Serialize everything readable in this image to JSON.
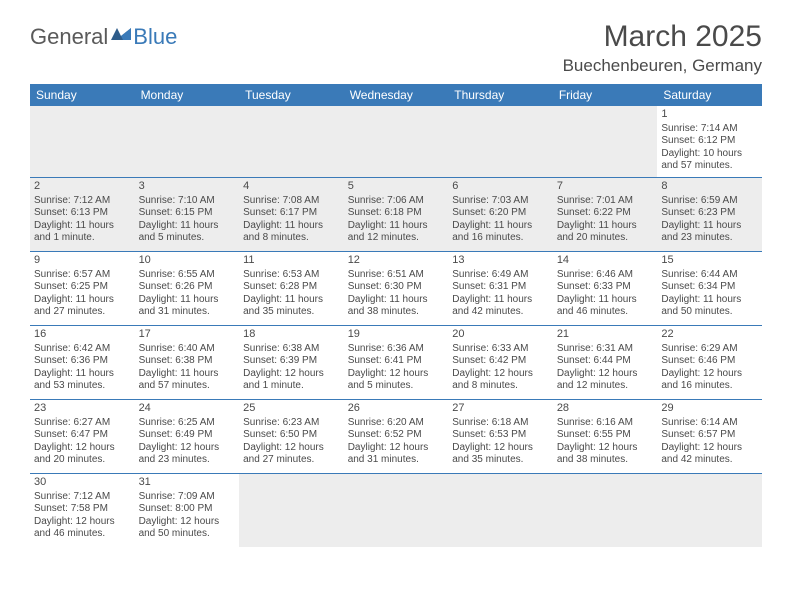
{
  "logo": {
    "general": "General",
    "blue": "Blue"
  },
  "title": "March 2025",
  "location": "Buechenbeuren, Germany",
  "colors": {
    "headerBg": "#3a7ab8",
    "headerText": "#ffffff",
    "border": "#3a7ab8",
    "text": "#4a4a4a",
    "emptyBg": "#ededed"
  },
  "weekdays": [
    "Sunday",
    "Monday",
    "Tuesday",
    "Wednesday",
    "Thursday",
    "Friday",
    "Saturday"
  ],
  "weeks": [
    [
      null,
      null,
      null,
      null,
      null,
      null,
      {
        "n": "1",
        "sr": "Sunrise: 7:14 AM",
        "ss": "Sunset: 6:12 PM",
        "dl": "Daylight: 10 hours and 57 minutes."
      }
    ],
    [
      {
        "n": "2",
        "sr": "Sunrise: 7:12 AM",
        "ss": "Sunset: 6:13 PM",
        "dl": "Daylight: 11 hours and 1 minute."
      },
      {
        "n": "3",
        "sr": "Sunrise: 7:10 AM",
        "ss": "Sunset: 6:15 PM",
        "dl": "Daylight: 11 hours and 5 minutes."
      },
      {
        "n": "4",
        "sr": "Sunrise: 7:08 AM",
        "ss": "Sunset: 6:17 PM",
        "dl": "Daylight: 11 hours and 8 minutes."
      },
      {
        "n": "5",
        "sr": "Sunrise: 7:06 AM",
        "ss": "Sunset: 6:18 PM",
        "dl": "Daylight: 11 hours and 12 minutes."
      },
      {
        "n": "6",
        "sr": "Sunrise: 7:03 AM",
        "ss": "Sunset: 6:20 PM",
        "dl": "Daylight: 11 hours and 16 minutes."
      },
      {
        "n": "7",
        "sr": "Sunrise: 7:01 AM",
        "ss": "Sunset: 6:22 PM",
        "dl": "Daylight: 11 hours and 20 minutes."
      },
      {
        "n": "8",
        "sr": "Sunrise: 6:59 AM",
        "ss": "Sunset: 6:23 PM",
        "dl": "Daylight: 11 hours and 23 minutes."
      }
    ],
    [
      {
        "n": "9",
        "sr": "Sunrise: 6:57 AM",
        "ss": "Sunset: 6:25 PM",
        "dl": "Daylight: 11 hours and 27 minutes."
      },
      {
        "n": "10",
        "sr": "Sunrise: 6:55 AM",
        "ss": "Sunset: 6:26 PM",
        "dl": "Daylight: 11 hours and 31 minutes."
      },
      {
        "n": "11",
        "sr": "Sunrise: 6:53 AM",
        "ss": "Sunset: 6:28 PM",
        "dl": "Daylight: 11 hours and 35 minutes."
      },
      {
        "n": "12",
        "sr": "Sunrise: 6:51 AM",
        "ss": "Sunset: 6:30 PM",
        "dl": "Daylight: 11 hours and 38 minutes."
      },
      {
        "n": "13",
        "sr": "Sunrise: 6:49 AM",
        "ss": "Sunset: 6:31 PM",
        "dl": "Daylight: 11 hours and 42 minutes."
      },
      {
        "n": "14",
        "sr": "Sunrise: 6:46 AM",
        "ss": "Sunset: 6:33 PM",
        "dl": "Daylight: 11 hours and 46 minutes."
      },
      {
        "n": "15",
        "sr": "Sunrise: 6:44 AM",
        "ss": "Sunset: 6:34 PM",
        "dl": "Daylight: 11 hours and 50 minutes."
      }
    ],
    [
      {
        "n": "16",
        "sr": "Sunrise: 6:42 AM",
        "ss": "Sunset: 6:36 PM",
        "dl": "Daylight: 11 hours and 53 minutes."
      },
      {
        "n": "17",
        "sr": "Sunrise: 6:40 AM",
        "ss": "Sunset: 6:38 PM",
        "dl": "Daylight: 11 hours and 57 minutes."
      },
      {
        "n": "18",
        "sr": "Sunrise: 6:38 AM",
        "ss": "Sunset: 6:39 PM",
        "dl": "Daylight: 12 hours and 1 minute."
      },
      {
        "n": "19",
        "sr": "Sunrise: 6:36 AM",
        "ss": "Sunset: 6:41 PM",
        "dl": "Daylight: 12 hours and 5 minutes."
      },
      {
        "n": "20",
        "sr": "Sunrise: 6:33 AM",
        "ss": "Sunset: 6:42 PM",
        "dl": "Daylight: 12 hours and 8 minutes."
      },
      {
        "n": "21",
        "sr": "Sunrise: 6:31 AM",
        "ss": "Sunset: 6:44 PM",
        "dl": "Daylight: 12 hours and 12 minutes."
      },
      {
        "n": "22",
        "sr": "Sunrise: 6:29 AM",
        "ss": "Sunset: 6:46 PM",
        "dl": "Daylight: 12 hours and 16 minutes."
      }
    ],
    [
      {
        "n": "23",
        "sr": "Sunrise: 6:27 AM",
        "ss": "Sunset: 6:47 PM",
        "dl": "Daylight: 12 hours and 20 minutes."
      },
      {
        "n": "24",
        "sr": "Sunrise: 6:25 AM",
        "ss": "Sunset: 6:49 PM",
        "dl": "Daylight: 12 hours and 23 minutes."
      },
      {
        "n": "25",
        "sr": "Sunrise: 6:23 AM",
        "ss": "Sunset: 6:50 PM",
        "dl": "Daylight: 12 hours and 27 minutes."
      },
      {
        "n": "26",
        "sr": "Sunrise: 6:20 AM",
        "ss": "Sunset: 6:52 PM",
        "dl": "Daylight: 12 hours and 31 minutes."
      },
      {
        "n": "27",
        "sr": "Sunrise: 6:18 AM",
        "ss": "Sunset: 6:53 PM",
        "dl": "Daylight: 12 hours and 35 minutes."
      },
      {
        "n": "28",
        "sr": "Sunrise: 6:16 AM",
        "ss": "Sunset: 6:55 PM",
        "dl": "Daylight: 12 hours and 38 minutes."
      },
      {
        "n": "29",
        "sr": "Sunrise: 6:14 AM",
        "ss": "Sunset: 6:57 PM",
        "dl": "Daylight: 12 hours and 42 minutes."
      }
    ],
    [
      {
        "n": "30",
        "sr": "Sunrise: 7:12 AM",
        "ss": "Sunset: 7:58 PM",
        "dl": "Daylight: 12 hours and 46 minutes."
      },
      {
        "n": "31",
        "sr": "Sunrise: 7:09 AM",
        "ss": "Sunset: 8:00 PM",
        "dl": "Daylight: 12 hours and 50 minutes."
      },
      null,
      null,
      null,
      null,
      null
    ]
  ]
}
